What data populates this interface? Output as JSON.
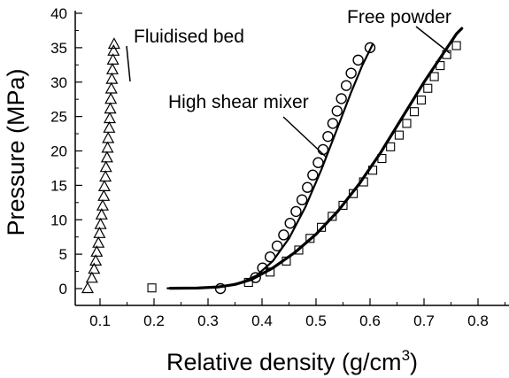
{
  "chart_data": {
    "type": "scatter",
    "xlabel": "Relative density (g/cm",
    "xlabel_sup": "3",
    "xlabel_close": ")",
    "ylabel": "Pressure (MPa)",
    "xlim": [
      0.0,
      0.85
    ],
    "ylim": [
      -1.5,
      40
    ],
    "xticks": [
      0.1,
      0.2,
      0.3,
      0.4,
      0.5,
      0.6,
      0.7,
      0.8
    ],
    "xtick_labels": [
      "0.1",
      "0.2",
      "0.3",
      "0.4",
      "0.5",
      "0.6",
      "0.7",
      "0.8"
    ],
    "yticks": [
      0,
      5,
      10,
      15,
      20,
      25,
      30,
      35,
      40
    ],
    "ytick_labels": [
      "0",
      "5",
      "10",
      "15",
      "20",
      "25",
      "30",
      "35",
      "40"
    ],
    "grid": false,
    "series": [
      {
        "name": "Fluidised bed",
        "marker": "triangle",
        "points": [
          [
            0.077,
            0
          ],
          [
            0.085,
            1.5
          ],
          [
            0.089,
            2.8
          ],
          [
            0.092,
            4.0
          ],
          [
            0.094,
            5.3
          ],
          [
            0.097,
            6.6
          ],
          [
            0.099,
            8.0
          ],
          [
            0.101,
            9.3
          ],
          [
            0.103,
            10.7
          ],
          [
            0.105,
            12.0
          ],
          [
            0.107,
            13.4
          ],
          [
            0.108,
            14.8
          ],
          [
            0.11,
            16.2
          ],
          [
            0.111,
            17.6
          ],
          [
            0.113,
            19.0
          ],
          [
            0.114,
            20.4
          ],
          [
            0.115,
            21.8
          ],
          [
            0.117,
            23.3
          ],
          [
            0.118,
            24.7
          ],
          [
            0.119,
            26.1
          ],
          [
            0.12,
            27.5
          ],
          [
            0.121,
            29.0
          ],
          [
            0.122,
            30.4
          ],
          [
            0.123,
            31.8
          ],
          [
            0.124,
            33.2
          ],
          [
            0.125,
            34.5
          ],
          [
            0.126,
            35.5
          ]
        ]
      },
      {
        "name": "High shear mixer",
        "marker": "circle",
        "points": [
          [
            0.323,
            0
          ],
          [
            0.388,
            1.6
          ],
          [
            0.401,
            3.0
          ],
          [
            0.415,
            4.6
          ],
          [
            0.428,
            6.2
          ],
          [
            0.44,
            7.8
          ],
          [
            0.452,
            9.5
          ],
          [
            0.463,
            11.2
          ],
          [
            0.474,
            12.9
          ],
          [
            0.484,
            14.7
          ],
          [
            0.494,
            16.5
          ],
          [
            0.504,
            18.3
          ],
          [
            0.513,
            20.2
          ],
          [
            0.522,
            22.1
          ],
          [
            0.531,
            24.0
          ],
          [
            0.539,
            25.8
          ],
          [
            0.547,
            27.6
          ],
          [
            0.556,
            29.5
          ],
          [
            0.565,
            31.3
          ],
          [
            0.578,
            33.2
          ],
          [
            0.6,
            35.0
          ]
        ]
      },
      {
        "name": "Free powder",
        "marker": "square",
        "points": [
          [
            0.196,
            0.1
          ],
          [
            0.375,
            0.9
          ],
          [
            0.415,
            2.4
          ],
          [
            0.445,
            4.0
          ],
          [
            0.468,
            5.6
          ],
          [
            0.489,
            7.3
          ],
          [
            0.51,
            8.9
          ],
          [
            0.53,
            10.5
          ],
          [
            0.55,
            12.1
          ],
          [
            0.569,
            13.8
          ],
          [
            0.588,
            15.5
          ],
          [
            0.605,
            17.2
          ],
          [
            0.622,
            18.9
          ],
          [
            0.638,
            20.6
          ],
          [
            0.654,
            22.3
          ],
          [
            0.668,
            24.0
          ],
          [
            0.682,
            25.7
          ],
          [
            0.695,
            27.4
          ],
          [
            0.707,
            29.1
          ],
          [
            0.719,
            30.8
          ],
          [
            0.73,
            32.4
          ],
          [
            0.742,
            34.0
          ],
          [
            0.76,
            35.3
          ]
        ]
      }
    ],
    "fit_lines": [
      {
        "series": "High shear mixer",
        "points": [
          [
            0.225,
            0.05
          ],
          [
            0.27,
            0.07
          ],
          [
            0.3,
            0.15
          ],
          [
            0.33,
            0.35
          ],
          [
            0.36,
            0.85
          ],
          [
            0.39,
            1.9
          ],
          [
            0.42,
            4.0
          ],
          [
            0.45,
            7.3
          ],
          [
            0.48,
            11.8
          ],
          [
            0.51,
            17.3
          ],
          [
            0.54,
            23.4
          ],
          [
            0.565,
            28.5
          ],
          [
            0.585,
            32.3
          ],
          [
            0.605,
            35.5
          ]
        ]
      },
      {
        "series": "Free powder",
        "points": [
          [
            0.23,
            0.05
          ],
          [
            0.28,
            0.08
          ],
          [
            0.32,
            0.25
          ],
          [
            0.35,
            0.6
          ],
          [
            0.38,
            1.3
          ],
          [
            0.42,
            3.0
          ],
          [
            0.46,
            5.2
          ],
          [
            0.5,
            7.9
          ],
          [
            0.54,
            11.2
          ],
          [
            0.58,
            15.2
          ],
          [
            0.62,
            19.8
          ],
          [
            0.66,
            24.9
          ],
          [
            0.7,
            30.0
          ],
          [
            0.73,
            33.5
          ],
          [
            0.76,
            37.0
          ],
          [
            0.77,
            37.8
          ]
        ]
      }
    ],
    "annotations": [
      {
        "text": "Fluidised bed",
        "series": "Fluidised bed"
      },
      {
        "text": "High shear mixer",
        "series": "High shear mixer"
      },
      {
        "text": "Free powder",
        "series": "Free powder"
      }
    ]
  }
}
